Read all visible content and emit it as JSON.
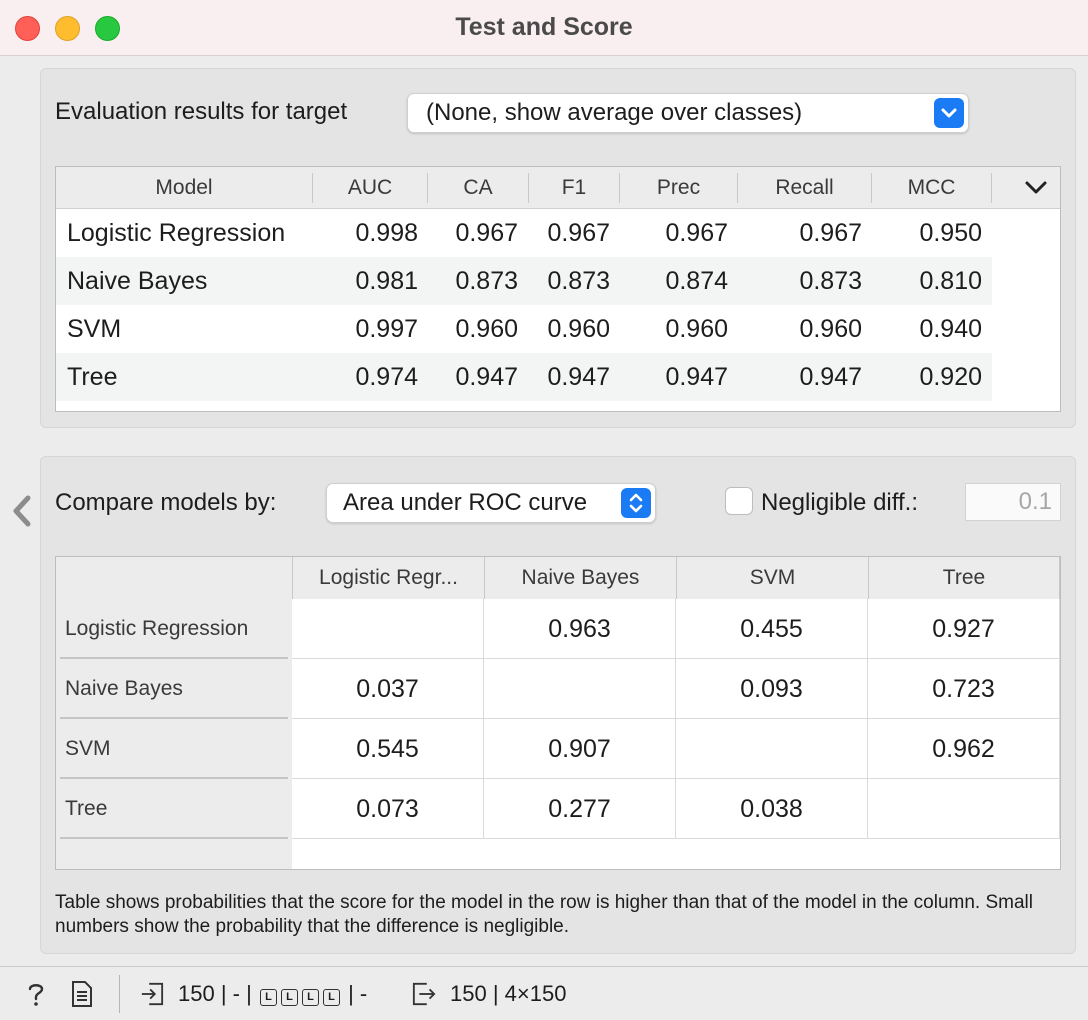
{
  "window": {
    "title": "Test and Score"
  },
  "evaluation": {
    "target_label": "Evaluation results for target",
    "target_value": "(None, show average over classes)",
    "columns": [
      "Model",
      "AUC",
      "CA",
      "F1",
      "Prec",
      "Recall",
      "MCC"
    ],
    "rows": [
      {
        "model": "Logistic Regression",
        "values": [
          "0.998",
          "0.967",
          "0.967",
          "0.967",
          "0.967",
          "0.950"
        ]
      },
      {
        "model": "Naive Bayes",
        "values": [
          "0.981",
          "0.873",
          "0.873",
          "0.874",
          "0.873",
          "0.810"
        ]
      },
      {
        "model": "SVM",
        "values": [
          "0.997",
          "0.960",
          "0.960",
          "0.960",
          "0.960",
          "0.940"
        ]
      },
      {
        "model": "Tree",
        "values": [
          "0.974",
          "0.947",
          "0.947",
          "0.947",
          "0.947",
          "0.920"
        ]
      }
    ]
  },
  "compare": {
    "label": "Compare models by:",
    "metric": "Area under ROC curve",
    "negligible_label": "Negligible diff.:",
    "negligible_checked": false,
    "negligible_value": "0.1",
    "columns": [
      "Logistic Regr...",
      "Naive Bayes",
      "SVM",
      "Tree"
    ],
    "rows": [
      {
        "label": "Logistic Regression",
        "values": [
          "",
          "0.963",
          "0.455",
          "0.927"
        ]
      },
      {
        "label": "Naive Bayes",
        "values": [
          "0.037",
          "",
          "0.093",
          "0.723"
        ]
      },
      {
        "label": "SVM",
        "values": [
          "0.545",
          "0.907",
          "",
          "0.962"
        ]
      },
      {
        "label": "Tree",
        "values": [
          "0.073",
          "0.277",
          "0.038",
          ""
        ]
      }
    ],
    "note": "Table shows probabilities that the score for the model in the row is higher than that of the model in the column. Small numbers show the probability that the difference is negligible."
  },
  "statusbar": {
    "input_text": "150 | - |",
    "input_suffix": "| -",
    "input_boxes": [
      "L",
      "L",
      "L",
      "L"
    ],
    "output_text": "150 | 4×150"
  },
  "icons": [
    "help-icon",
    "report-icon",
    "input-icon",
    "output-icon",
    "collapse-left-icon",
    "dropdown-chevron-icon",
    "column-menu-chevron-icon"
  ]
}
